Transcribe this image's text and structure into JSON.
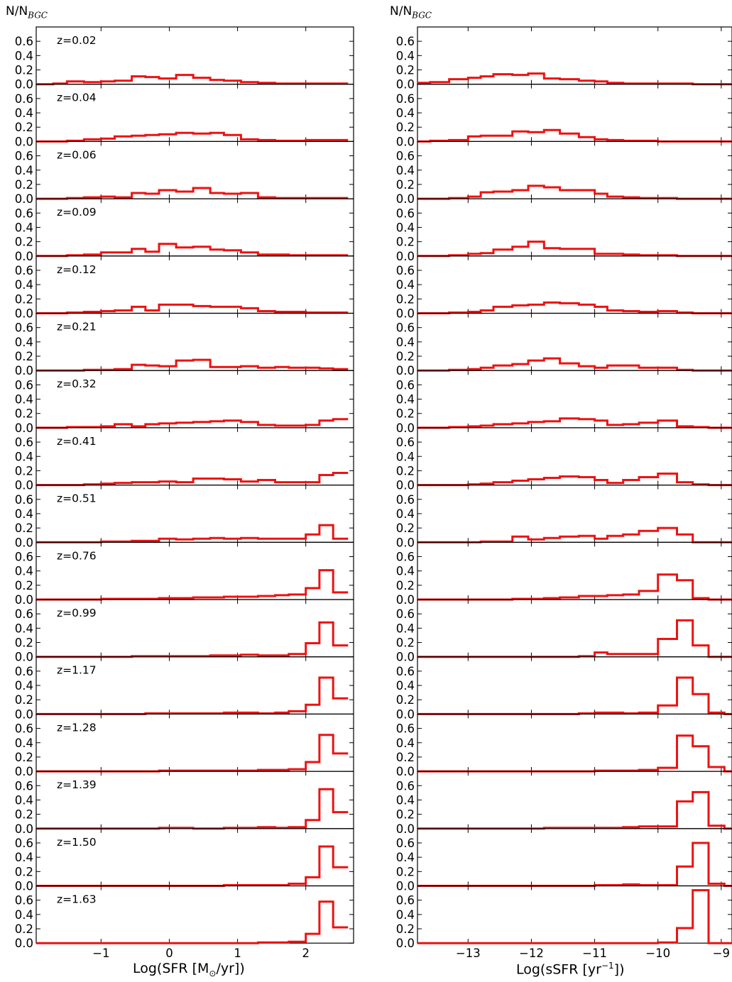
{
  "figure": {
    "left_ylabel": {
      "main": "N/N",
      "sub": "BGC"
    },
    "right_ylabel": {
      "main": "N/N",
      "sub": "BGC"
    },
    "left_xlabel": {
      "pre": "Log(SFR [M",
      "sub": "⊙",
      "post": "/yr])"
    },
    "right_xlabel": {
      "pre": "Log(sSFR [yr",
      "sup": "−1",
      "post": "])"
    }
  },
  "chart_data": [
    {
      "type": "step-histogram",
      "name": "SFR",
      "xlim": [
        -1.95,
        2.7
      ],
      "ylim": [
        0,
        0.8
      ],
      "xticks": [
        -1,
        0,
        1,
        2
      ],
      "xtick_labels": [
        "−1",
        "0",
        "1",
        "2"
      ],
      "yticks": [
        0.0,
        0.2,
        0.4,
        0.6
      ],
      "ytick_labels": [
        "0.0",
        "0.2",
        "0.4",
        "0.6"
      ],
      "line_color": "#ee1111",
      "bin_edges": [
        -1.95,
        -1.7,
        -1.5,
        -1.25,
        -1.0,
        -0.8,
        -0.55,
        -0.35,
        -0.15,
        0.1,
        0.35,
        0.6,
        0.8,
        1.05,
        1.3,
        1.55,
        1.75,
        2.0,
        2.2,
        2.4,
        2.62
      ],
      "panels": [
        {
          "label": "z=0.02",
          "counts": [
            0,
            0.01,
            0.04,
            0.03,
            0.04,
            0.05,
            0.11,
            0.1,
            0.08,
            0.13,
            0.09,
            0.06,
            0.05,
            0.03,
            0.02,
            0.01,
            0.01,
            0.01,
            0.01,
            0.01
          ]
        },
        {
          "label": "z=0.04",
          "counts": [
            0,
            0.0,
            0.01,
            0.03,
            0.04,
            0.07,
            0.08,
            0.09,
            0.1,
            0.12,
            0.11,
            0.12,
            0.09,
            0.03,
            0.02,
            0.01,
            0.01,
            0.02,
            0.02,
            0.02
          ]
        },
        {
          "label": "z=0.06",
          "counts": [
            0,
            0.0,
            0.01,
            0.02,
            0.03,
            0.02,
            0.08,
            0.07,
            0.12,
            0.1,
            0.15,
            0.08,
            0.07,
            0.08,
            0.02,
            0.01,
            0.01,
            0.01,
            0.01,
            0.01
          ]
        },
        {
          "label": "z=0.09",
          "counts": [
            0,
            0.0,
            0.01,
            0.02,
            0.05,
            0.05,
            0.1,
            0.06,
            0.17,
            0.12,
            0.13,
            0.09,
            0.08,
            0.05,
            0.02,
            0.02,
            0.01,
            0.01,
            0.01,
            0.01
          ]
        },
        {
          "label": "z=0.12",
          "counts": [
            0,
            0.0,
            0.01,
            0.02,
            0.03,
            0.04,
            0.09,
            0.04,
            0.12,
            0.12,
            0.1,
            0.09,
            0.09,
            0.07,
            0.03,
            0.02,
            0.02,
            0.01,
            0.01,
            0.01
          ]
        },
        {
          "label": "z=0.21",
          "counts": [
            0,
            0.0,
            0.0,
            0.01,
            0.01,
            0.02,
            0.08,
            0.07,
            0.06,
            0.14,
            0.15,
            0.05,
            0.05,
            0.06,
            0.04,
            0.05,
            0.04,
            0.04,
            0.03,
            0.02
          ]
        },
        {
          "label": "z=0.32",
          "counts": [
            0,
            0.0,
            0.01,
            0.01,
            0.02,
            0.05,
            0.02,
            0.05,
            0.06,
            0.07,
            0.08,
            0.09,
            0.1,
            0.08,
            0.04,
            0.03,
            0.03,
            0.04,
            0.1,
            0.12
          ]
        },
        {
          "label": "z=0.41",
          "counts": [
            0,
            0.0,
            0.0,
            0.01,
            0.02,
            0.03,
            0.04,
            0.04,
            0.05,
            0.04,
            0.09,
            0.09,
            0.08,
            0.05,
            0.07,
            0.04,
            0.04,
            0.04,
            0.14,
            0.17
          ]
        },
        {
          "label": "z=0.51",
          "counts": [
            0,
            0.0,
            0.0,
            0.0,
            0.01,
            0.01,
            0.02,
            0.02,
            0.05,
            0.04,
            0.05,
            0.06,
            0.05,
            0.06,
            0.05,
            0.05,
            0.05,
            0.11,
            0.24,
            0.05
          ]
        },
        {
          "label": "z=0.76",
          "counts": [
            0,
            0.0,
            0.0,
            0.0,
            0.01,
            0.01,
            0.01,
            0.01,
            0.02,
            0.02,
            0.03,
            0.03,
            0.04,
            0.04,
            0.05,
            0.06,
            0.07,
            0.16,
            0.41,
            0.1
          ]
        },
        {
          "label": "z=0.99",
          "counts": [
            0,
            0.0,
            0.0,
            0.0,
            0.0,
            0.0,
            0.01,
            0.01,
            0.01,
            0.01,
            0.01,
            0.02,
            0.02,
            0.03,
            0.02,
            0.02,
            0.04,
            0.19,
            0.48,
            0.16
          ]
        },
        {
          "label": "z=1.17",
          "counts": [
            0,
            0.0,
            0.0,
            0.0,
            0.0,
            0.0,
            0.0,
            0.01,
            0.01,
            0.01,
            0.01,
            0.01,
            0.02,
            0.02,
            0.01,
            0.02,
            0.04,
            0.13,
            0.51,
            0.22
          ]
        },
        {
          "label": "z=1.28",
          "counts": [
            0,
            0.0,
            0.0,
            0.0,
            0.0,
            0.0,
            0.0,
            0.0,
            0.01,
            0.01,
            0.01,
            0.01,
            0.01,
            0.01,
            0.02,
            0.02,
            0.03,
            0.13,
            0.51,
            0.25
          ]
        },
        {
          "label": "z=1.39",
          "counts": [
            0,
            0.0,
            0.0,
            0.0,
            0.0,
            0.0,
            0.0,
            0.0,
            0.01,
            0.01,
            0.0,
            0.0,
            0.01,
            0.01,
            0.02,
            0.01,
            0.02,
            0.12,
            0.55,
            0.23
          ]
        },
        {
          "label": "z=1.50",
          "counts": [
            0,
            0.0,
            0.0,
            0.0,
            0.0,
            0.0,
            0.0,
            0.0,
            0.0,
            0.0,
            0.0,
            0.0,
            0.01,
            0.01,
            0.01,
            0.01,
            0.03,
            0.12,
            0.55,
            0.26
          ]
        },
        {
          "label": "z=1.63",
          "counts": [
            0,
            0.0,
            0.0,
            0.0,
            0.0,
            0.0,
            0.0,
            0.0,
            0.0,
            0.0,
            0.0,
            0.0,
            0.0,
            0.0,
            0.01,
            0.01,
            0.02,
            0.13,
            0.58,
            0.22
          ]
        }
      ]
    },
    {
      "type": "step-histogram",
      "name": "sSFR",
      "xlim": [
        -13.8,
        -8.83
      ],
      "ylim": [
        0,
        0.8
      ],
      "xticks": [
        -13,
        -12,
        -11,
        -10,
        -9
      ],
      "xtick_labels": [
        "−13",
        "−12",
        "−11",
        "−10",
        "−9"
      ],
      "yticks": [
        0.0,
        0.2,
        0.4,
        0.6
      ],
      "ytick_labels": [
        "0.0",
        "0.2",
        "0.4",
        "0.6"
      ],
      "line_color": "#ee1111",
      "bin_edges": [
        -13.8,
        -13.6,
        -13.3,
        -13.0,
        -12.8,
        -12.6,
        -12.3,
        -12.05,
        -11.8,
        -11.55,
        -11.25,
        -11.0,
        -10.8,
        -10.55,
        -10.3,
        -10.0,
        -9.7,
        -9.45,
        -9.2,
        -8.95,
        -8.83
      ],
      "panels": [
        {
          "label": "",
          "counts": [
            0.02,
            0.03,
            0.07,
            0.09,
            0.11,
            0.14,
            0.13,
            0.15,
            0.08,
            0.07,
            0.05,
            0.04,
            0.02,
            0.01,
            0.01,
            0.01,
            0.01,
            0.0,
            0.0,
            0.0
          ]
        },
        {
          "label": "",
          "counts": [
            0.0,
            0.01,
            0.02,
            0.07,
            0.08,
            0.08,
            0.14,
            0.13,
            0.16,
            0.11,
            0.06,
            0.03,
            0.02,
            0.01,
            0.01,
            0.0,
            0.0,
            0.0,
            0.0,
            0.0
          ]
        },
        {
          "label": "",
          "counts": [
            0.0,
            0.0,
            0.01,
            0.03,
            0.09,
            0.1,
            0.12,
            0.18,
            0.16,
            0.12,
            0.12,
            0.07,
            0.03,
            0.02,
            0.01,
            0.01,
            0.0,
            0.0,
            0.0,
            0.0
          ]
        },
        {
          "label": "",
          "counts": [
            0.0,
            0.0,
            0.01,
            0.03,
            0.04,
            0.09,
            0.13,
            0.2,
            0.11,
            0.1,
            0.1,
            0.03,
            0.03,
            0.02,
            0.01,
            0.01,
            0.0,
            0.0,
            0.0,
            0.0
          ]
        },
        {
          "label": "",
          "counts": [
            0.0,
            0.0,
            0.01,
            0.02,
            0.04,
            0.09,
            0.11,
            0.12,
            0.15,
            0.14,
            0.12,
            0.09,
            0.04,
            0.03,
            0.02,
            0.03,
            0.01,
            0.0,
            0.0,
            0.0
          ]
        },
        {
          "label": "",
          "counts": [
            0.0,
            0.0,
            0.01,
            0.02,
            0.04,
            0.07,
            0.09,
            0.14,
            0.17,
            0.1,
            0.06,
            0.04,
            0.07,
            0.07,
            0.04,
            0.04,
            0.01,
            0.0,
            0.0,
            0.0
          ]
        },
        {
          "label": "",
          "counts": [
            0.0,
            0.0,
            0.01,
            0.02,
            0.03,
            0.05,
            0.06,
            0.08,
            0.09,
            0.13,
            0.12,
            0.1,
            0.04,
            0.05,
            0.07,
            0.1,
            0.02,
            0.01,
            0.0,
            0.0
          ]
        },
        {
          "label": "",
          "counts": [
            0.0,
            0.0,
            0.0,
            0.01,
            0.02,
            0.04,
            0.06,
            0.08,
            0.1,
            0.12,
            0.11,
            0.07,
            0.03,
            0.07,
            0.11,
            0.16,
            0.04,
            0.01,
            0.0,
            0.0
          ]
        },
        {
          "label": "",
          "counts": [
            0.0,
            0.0,
            0.0,
            0.0,
            0.01,
            0.01,
            0.08,
            0.04,
            0.06,
            0.08,
            0.09,
            0.05,
            0.09,
            0.11,
            0.16,
            0.2,
            0.11,
            0.0,
            0.0,
            0.0
          ]
        },
        {
          "label": "",
          "counts": [
            0.0,
            0.0,
            0.0,
            0.0,
            0.0,
            0.0,
            0.01,
            0.01,
            0.02,
            0.03,
            0.05,
            0.05,
            0.06,
            0.07,
            0.12,
            0.35,
            0.27,
            0.02,
            0.0,
            0.0
          ]
        },
        {
          "label": "",
          "counts": [
            0.0,
            0.0,
            0.0,
            0.0,
            0.0,
            0.0,
            0.0,
            0.0,
            0.0,
            0.0,
            0.01,
            0.06,
            0.04,
            0.04,
            0.04,
            0.25,
            0.51,
            0.16,
            0.0,
            0.0
          ]
        },
        {
          "label": "",
          "counts": [
            0.0,
            0.0,
            0.0,
            0.0,
            0.0,
            0.0,
            0.0,
            0.0,
            0.0,
            0.0,
            0.01,
            0.02,
            0.02,
            0.01,
            0.02,
            0.12,
            0.51,
            0.28,
            0.02,
            0.0
          ]
        },
        {
          "label": "",
          "counts": [
            0.0,
            0.0,
            0.0,
            0.0,
            0.0,
            0.0,
            0.0,
            0.0,
            0.0,
            0.0,
            0.0,
            0.01,
            0.01,
            0.01,
            0.02,
            0.05,
            0.5,
            0.35,
            0.06,
            0.0
          ]
        },
        {
          "label": "",
          "counts": [
            0.0,
            0.0,
            0.0,
            0.0,
            0.0,
            0.0,
            0.0,
            0.0,
            0.01,
            0.01,
            0.01,
            0.01,
            0.01,
            0.02,
            0.03,
            0.03,
            0.38,
            0.51,
            0.04,
            0.0
          ]
        },
        {
          "label": "",
          "counts": [
            0.0,
            0.0,
            0.0,
            0.0,
            0.0,
            0.0,
            0.0,
            0.0,
            0.0,
            0.0,
            0.0,
            0.01,
            0.01,
            0.02,
            0.01,
            0.01,
            0.27,
            0.6,
            0.03,
            0.0
          ]
        },
        {
          "label": "",
          "counts": [
            0.0,
            0.0,
            0.0,
            0.0,
            0.0,
            0.0,
            0.0,
            0.0,
            0.0,
            0.0,
            0.0,
            0.0,
            0.0,
            0.0,
            0.0,
            0.01,
            0.21,
            0.74,
            0.0,
            0.0
          ]
        }
      ]
    }
  ]
}
